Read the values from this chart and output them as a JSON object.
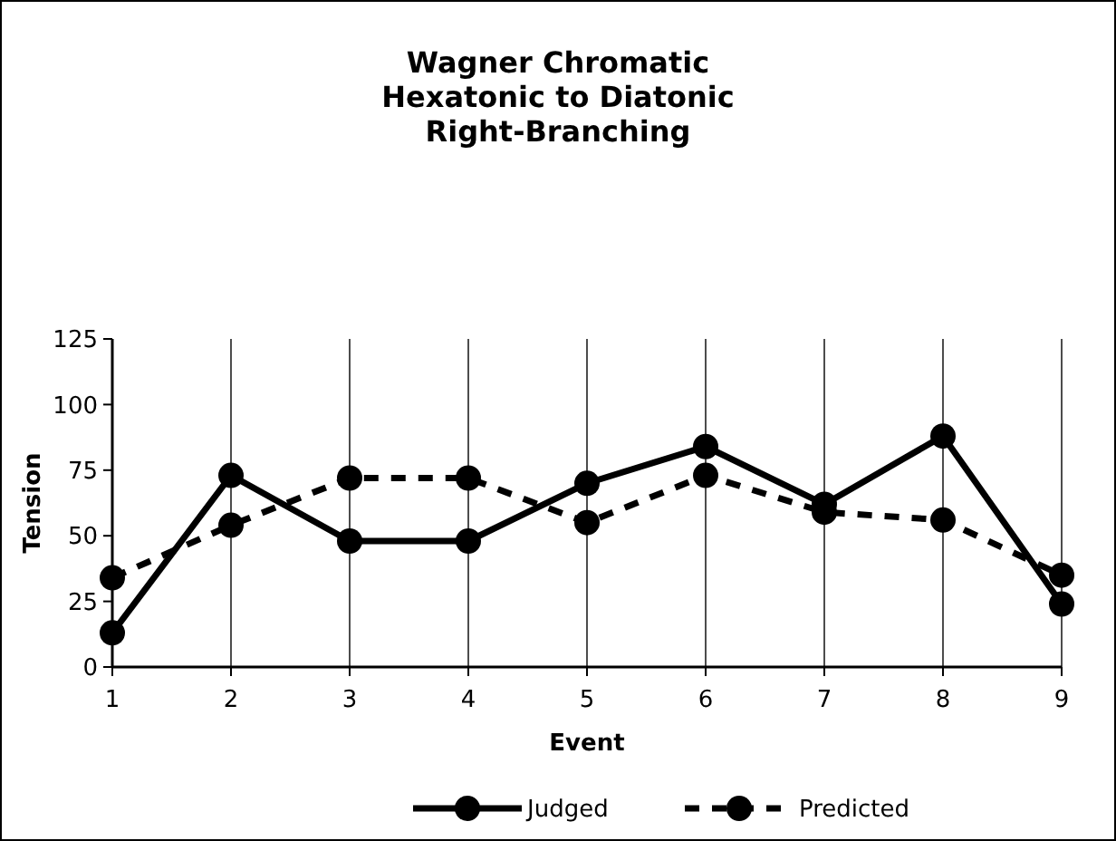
{
  "chart_data": {
    "type": "line",
    "title": "Wagner Chromatic\nHexatonic to Diatonic\nRight-Branching",
    "xlabel": "Event",
    "ylabel": "Tension",
    "x": [
      1,
      2,
      3,
      4,
      5,
      6,
      7,
      8,
      9
    ],
    "xlim": [
      1,
      9
    ],
    "xticks": [
      1,
      2,
      3,
      4,
      5,
      6,
      7,
      8,
      9
    ],
    "ylim": [
      0,
      125
    ],
    "yticks": [
      0,
      25,
      50,
      75,
      100,
      125
    ],
    "grid": "x",
    "legend": "bottom",
    "marker": "circle",
    "series": [
      {
        "name": "Judged",
        "color": "#000000",
        "line_style": "solid",
        "values": [
          13,
          73,
          48,
          48,
          70,
          84,
          62,
          88,
          24
        ]
      },
      {
        "name": "Predicted",
        "color": "#000000",
        "line_style": "dashed",
        "values": [
          34,
          54,
          72,
          72,
          55,
          73,
          59,
          56,
          35
        ]
      }
    ]
  }
}
